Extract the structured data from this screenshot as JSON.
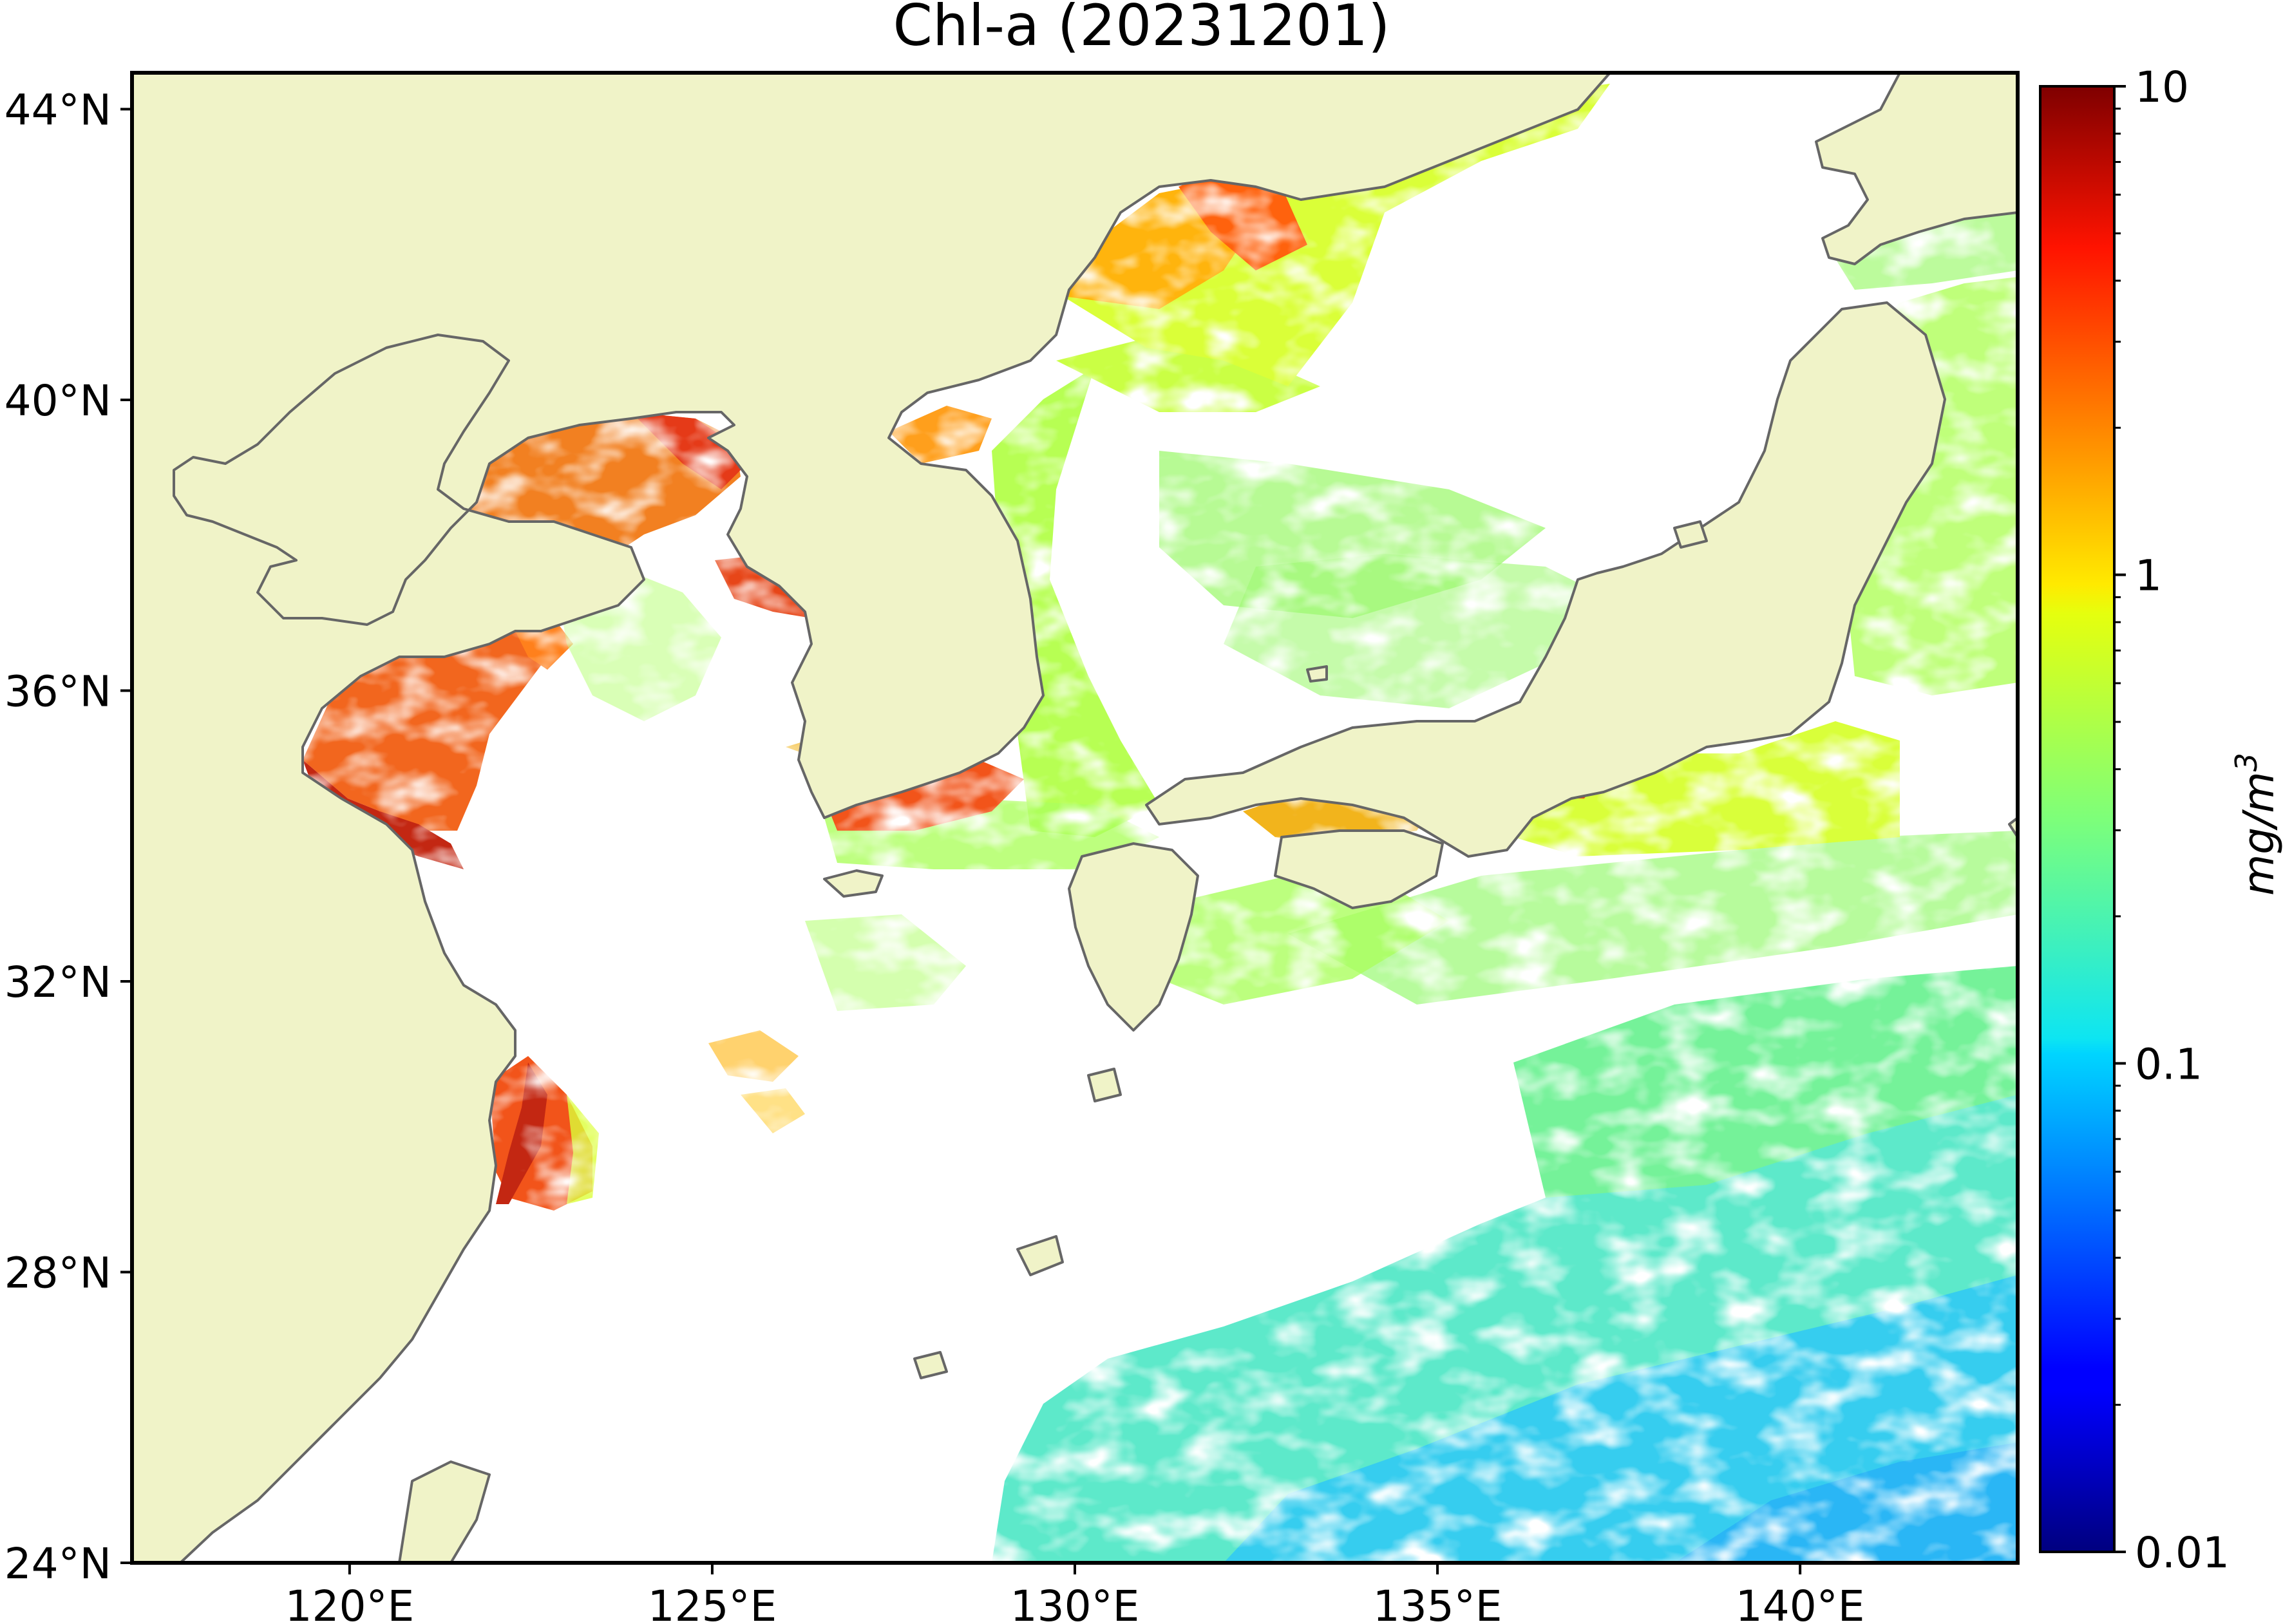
{
  "title": "Chl-a (20231201)",
  "map": {
    "lon_range": [
      117,
      143
    ],
    "lat_range": [
      24,
      44.5
    ],
    "lon_ticks": [
      {
        "value": 120,
        "label": "120°E"
      },
      {
        "value": 125,
        "label": "125°E"
      },
      {
        "value": 130,
        "label": "130°E"
      },
      {
        "value": 135,
        "label": "135°E"
      },
      {
        "value": 140,
        "label": "140°E"
      }
    ],
    "lat_ticks": [
      {
        "value": 24,
        "label": "24°N"
      },
      {
        "value": 28,
        "label": "28°N"
      },
      {
        "value": 32,
        "label": "32°N"
      },
      {
        "value": 36,
        "label": "36°N"
      },
      {
        "value": 40,
        "label": "40°N"
      },
      {
        "value": 44,
        "label": "44°N"
      }
    ],
    "land_color": "#f0f3c8",
    "coast_color": "#666666",
    "nodata_color": "#ffffff"
  },
  "colorbar": {
    "scale": "log",
    "min": 0.01,
    "max": 10,
    "colormap": "jet",
    "unit_label": "mg/m",
    "unit_superscript": "3",
    "ticks": [
      {
        "value": 10,
        "label": "10"
      },
      {
        "value": 1,
        "label": "1"
      },
      {
        "value": 0.1,
        "label": "0.1"
      },
      {
        "value": 0.01,
        "label": "0.01"
      }
    ]
  }
}
